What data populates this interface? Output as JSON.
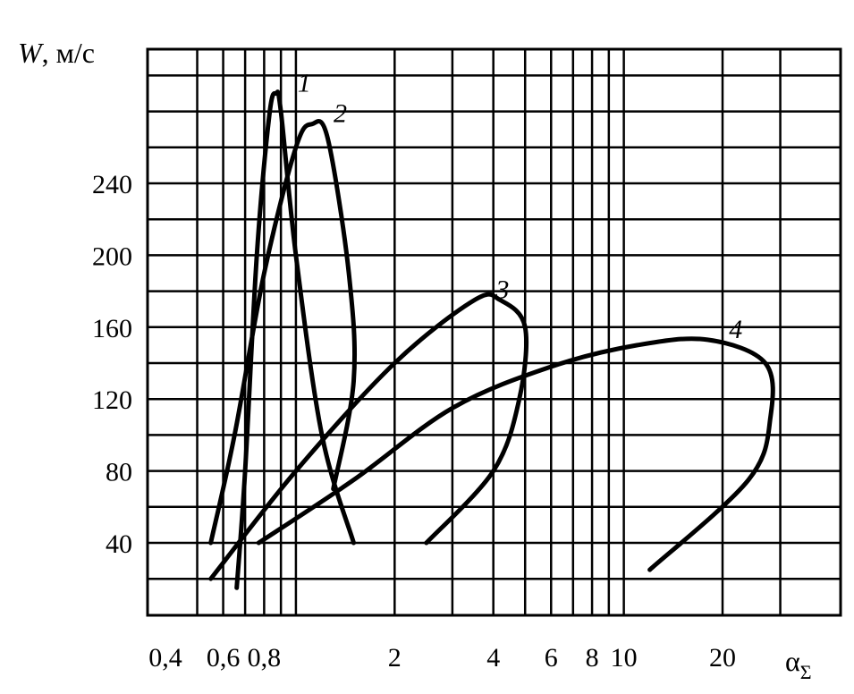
{
  "chart_data": {
    "type": "line",
    "title": "",
    "ylabel": {
      "symbol": "W",
      "unit": ", м/с"
    },
    "xlabel": {
      "symbol": "α",
      "subscript": "Σ"
    },
    "x_scale": "log",
    "x_ticks": [
      {
        "value": 0.4,
        "label": "0,4"
      },
      {
        "value": 0.6,
        "label": "0,6"
      },
      {
        "value": 0.8,
        "label": "0,8"
      },
      {
        "value": 2,
        "label": "2"
      },
      {
        "value": 4,
        "label": "4"
      },
      {
        "value": 6,
        "label": "6"
      },
      {
        "value": 8,
        "label": "8"
      },
      {
        "value": 10,
        "label": "10"
      },
      {
        "value": 20,
        "label": "20"
      }
    ],
    "y_ticks": [
      {
        "value": 40,
        "label": "40"
      },
      {
        "value": 80,
        "label": "80"
      },
      {
        "value": 120,
        "label": "120"
      },
      {
        "value": 160,
        "label": "160"
      },
      {
        "value": 200,
        "label": "200"
      },
      {
        "value": 240,
        "label": "240"
      }
    ],
    "grid": true,
    "series": [
      {
        "name": "1",
        "points": [
          [
            0.66,
            15
          ],
          [
            0.7,
            80
          ],
          [
            0.76,
            200
          ],
          [
            0.83,
            278
          ],
          [
            0.87,
            290
          ],
          [
            0.9,
            280
          ],
          [
            1.0,
            200
          ],
          [
            1.2,
            100
          ],
          [
            1.5,
            40
          ]
        ]
      },
      {
        "name": "2",
        "points": [
          [
            0.55,
            40
          ],
          [
            0.65,
            100
          ],
          [
            0.8,
            190
          ],
          [
            1.0,
            260
          ],
          [
            1.12,
            273
          ],
          [
            1.25,
            265
          ],
          [
            1.45,
            190
          ],
          [
            1.5,
            130
          ],
          [
            1.3,
            70
          ]
        ]
      },
      {
        "name": "3",
        "points": [
          [
            0.55,
            20
          ],
          [
            1.0,
            80
          ],
          [
            2.0,
            140
          ],
          [
            3.5,
            175
          ],
          [
            4.2,
            175
          ],
          [
            5.0,
            160
          ],
          [
            4.8,
            120
          ],
          [
            4.0,
            80
          ],
          [
            2.5,
            40
          ]
        ]
      },
      {
        "name": "4",
        "points": [
          [
            0.77,
            40
          ],
          [
            1.5,
            75
          ],
          [
            3.0,
            115
          ],
          [
            6.0,
            138
          ],
          [
            11.0,
            150
          ],
          [
            18.0,
            153
          ],
          [
            27.0,
            140
          ],
          [
            28.0,
            110
          ],
          [
            24.0,
            75
          ],
          [
            12.0,
            25
          ]
        ]
      }
    ]
  }
}
